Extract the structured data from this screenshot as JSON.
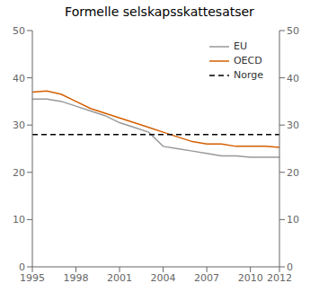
{
  "chart_data": {
    "type": "line",
    "title": "Formelle selskapsskattesatser",
    "x": [
      1995,
      1996,
      1997,
      1998,
      1999,
      2000,
      2001,
      2002,
      2003,
      2004,
      2005,
      2006,
      2007,
      2008,
      2009,
      2010,
      2011,
      2012
    ],
    "series": [
      {
        "name": "EU",
        "color": "#999999",
        "values": [
          35.5,
          35.5,
          35.0,
          34.0,
          33.0,
          32.0,
          30.5,
          29.5,
          28.5,
          25.5,
          25.0,
          24.5,
          24.0,
          23.5,
          23.5,
          23.2,
          23.2,
          23.2
        ]
      },
      {
        "name": "OECD",
        "color": "#d45f00",
        "values": [
          37.0,
          37.2,
          36.5,
          35.0,
          33.5,
          32.5,
          31.5,
          30.5,
          29.5,
          28.5,
          27.5,
          26.5,
          26.0,
          26.0,
          25.5,
          25.5,
          25.5,
          25.3
        ]
      },
      {
        "name": "Norge",
        "color": "#000000",
        "type": "hline",
        "line_style": "dashed",
        "value": 28.0
      }
    ],
    "xlim": [
      1995,
      2012
    ],
    "xticks": [
      1995,
      1998,
      2001,
      2004,
      2007,
      2010,
      2012
    ],
    "ylim": [
      0,
      50
    ],
    "yticks": [
      0,
      10,
      20,
      30,
      40,
      50
    ],
    "y2lim": [
      0,
      50
    ],
    "y2ticks": [
      0,
      10,
      20,
      30,
      40,
      50
    ],
    "grid": false,
    "legend": "upper right"
  }
}
